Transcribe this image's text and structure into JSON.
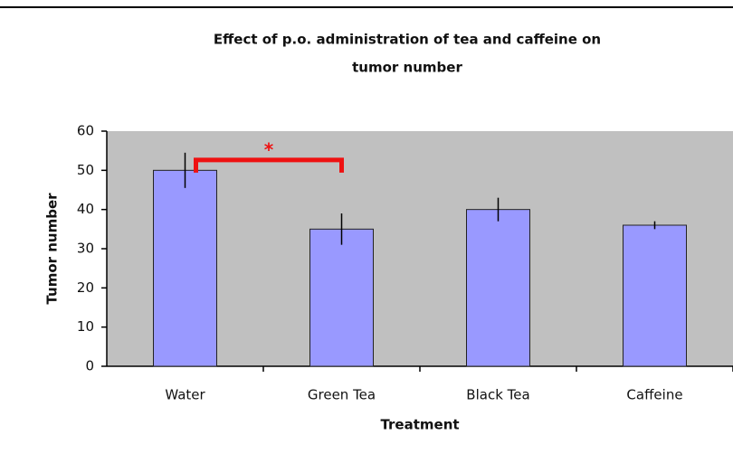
{
  "chart_data": {
    "type": "bar",
    "title": [
      "Effect of p.o. administration of tea and caffeine on",
      "tumor number"
    ],
    "categories": [
      "Water",
      "Green Tea",
      "Black Tea",
      "Caffeine"
    ],
    "values": [
      50,
      35,
      40,
      36
    ],
    "errors": [
      4.5,
      4,
      3,
      1
    ],
    "color": "#9999ff",
    "xlabel": "Treatment",
    "ylabel": "Tumor number",
    "annotation": "*",
    "annotation_color": "#ee1111",
    "ylim": [
      0,
      60
    ],
    "yticks": [
      0,
      10,
      20,
      30,
      40,
      50,
      60
    ],
    "grid": false
  }
}
